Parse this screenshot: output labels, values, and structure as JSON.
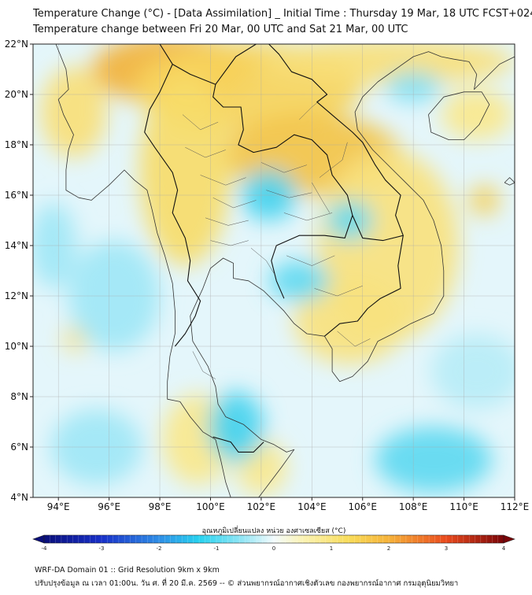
{
  "header": {
    "title_line1": "Temperature Change (°C) - [Data Assimilation] _ Initial Time : Thursday 19 Mar, 18 UTC FCST+024",
    "title_line2": "Temperature change between Fri 20 Mar, 00 UTC and Sat 21 Mar, 00 UTC"
  },
  "map": {
    "lat_range": [
      4,
      22
    ],
    "lon_range": [
      93,
      112
    ],
    "lat_ticks": [
      {
        "value": 22,
        "label": "22°N"
      },
      {
        "value": 20,
        "label": "20°N"
      },
      {
        "value": 18,
        "label": "18°N"
      },
      {
        "value": 16,
        "label": "16°N"
      },
      {
        "value": 14,
        "label": "14°N"
      },
      {
        "value": 12,
        "label": "12°N"
      },
      {
        "value": 10,
        "label": "10°N"
      },
      {
        "value": 8,
        "label": "8°N"
      },
      {
        "value": 6,
        "label": "6°N"
      },
      {
        "value": 4,
        "label": "4°N"
      }
    ],
    "lon_ticks": [
      {
        "value": 94,
        "label": "94°E"
      },
      {
        "value": 96,
        "label": "96°E"
      },
      {
        "value": 98,
        "label": "98°E"
      },
      {
        "value": 100,
        "label": "100°E"
      },
      {
        "value": 102,
        "label": "102°E"
      },
      {
        "value": 104,
        "label": "104°E"
      },
      {
        "value": 106,
        "label": "106°E"
      },
      {
        "value": 108,
        "label": "108°E"
      },
      {
        "value": 110,
        "label": "110°E"
      },
      {
        "value": 112,
        "label": "112°E"
      }
    ],
    "base_color": "#e4f6fb",
    "field_blobs": [
      {
        "lon": 98.5,
        "lat": 21.0,
        "rx": 3.2,
        "ry": 1.4,
        "color": "#f2b23a"
      },
      {
        "lon": 101.5,
        "lat": 20.3,
        "rx": 4.5,
        "ry": 1.8,
        "color": "#f7d45c"
      },
      {
        "lon": 107.0,
        "lat": 21.3,
        "rx": 5.0,
        "ry": 0.9,
        "color": "#f8e07a"
      },
      {
        "lon": 104.0,
        "lat": 17.6,
        "rx": 3.5,
        "ry": 1.6,
        "color": "#f3c448"
      },
      {
        "lon": 99.0,
        "lat": 17.0,
        "rx": 1.8,
        "ry": 3.8,
        "color": "#f7dc6a"
      },
      {
        "lon": 107.0,
        "lat": 14.0,
        "rx": 2.8,
        "ry": 3.8,
        "color": "#f8e27e"
      },
      {
        "lon": 105.5,
        "lat": 11.0,
        "rx": 2.2,
        "ry": 1.7,
        "color": "#f8e27e"
      },
      {
        "lon": 110.8,
        "lat": 15.8,
        "rx": 0.6,
        "ry": 0.6,
        "color": "#f5cf55"
      },
      {
        "lon": 94.6,
        "lat": 19.3,
        "rx": 1.3,
        "ry": 1.8,
        "color": "#f8e07a"
      },
      {
        "lon": 94.7,
        "lat": 10.3,
        "rx": 0.5,
        "ry": 0.5,
        "color": "#f8e07a"
      },
      {
        "lon": 99.5,
        "lat": 6.3,
        "rx": 1.4,
        "ry": 1.8,
        "color": "#fae88c"
      },
      {
        "lon": 102.0,
        "lat": 5.2,
        "rx": 1.0,
        "ry": 1.1,
        "color": "#fae88c"
      },
      {
        "lon": 110.5,
        "lat": 19.2,
        "rx": 1.4,
        "ry": 1.0,
        "color": "#fae88c"
      },
      {
        "lon": 102.3,
        "lat": 16.0,
        "rx": 1.1,
        "ry": 1.0,
        "color": "#44d3ef"
      },
      {
        "lon": 105.5,
        "lat": 15.0,
        "rx": 0.9,
        "ry": 0.8,
        "color": "#5ed9f1"
      },
      {
        "lon": 103.5,
        "lat": 12.6,
        "rx": 1.2,
        "ry": 0.8,
        "color": "#5ed9f1"
      },
      {
        "lon": 101.0,
        "lat": 6.8,
        "rx": 1.1,
        "ry": 1.4,
        "color": "#44d3ef"
      },
      {
        "lon": 108.8,
        "lat": 5.5,
        "rx": 2.3,
        "ry": 1.3,
        "color": "#5ed9f1"
      },
      {
        "lon": 108.0,
        "lat": 20.3,
        "rx": 1.1,
        "ry": 0.6,
        "color": "#7fe0f3"
      },
      {
        "lon": 96.2,
        "lat": 12.0,
        "rx": 1.8,
        "ry": 2.2,
        "color": "#9fe7f6"
      },
      {
        "lon": 95.5,
        "lat": 6.0,
        "rx": 1.8,
        "ry": 1.5,
        "color": "#9fe7f6"
      },
      {
        "lon": 110.5,
        "lat": 9.0,
        "rx": 1.8,
        "ry": 1.5,
        "color": "#b7edf7"
      },
      {
        "lon": 93.8,
        "lat": 14.0,
        "rx": 0.9,
        "ry": 1.7,
        "color": "#9fe7f6"
      }
    ],
    "coastlines": [
      [
        [
          93.9,
          22
        ],
        [
          94.3,
          21.0
        ],
        [
          94.4,
          20.2
        ],
        [
          94.0,
          19.8
        ],
        [
          94.2,
          19.2
        ],
        [
          94.6,
          18.4
        ],
        [
          94.4,
          17.8
        ],
        [
          94.3,
          17.0
        ],
        [
          94.3,
          16.2
        ],
        [
          94.8,
          15.9
        ],
        [
          95.3,
          15.8
        ],
        [
          96.0,
          16.4
        ],
        [
          96.6,
          17.0
        ],
        [
          97.0,
          16.6
        ],
        [
          97.5,
          16.2
        ],
        [
          97.7,
          15.4
        ],
        [
          97.9,
          14.5
        ],
        [
          98.2,
          13.6
        ],
        [
          98.5,
          12.5
        ],
        [
          98.6,
          11.4
        ],
        [
          98.6,
          10.5
        ],
        [
          98.4,
          9.6
        ],
        [
          98.3,
          8.6
        ],
        [
          98.3,
          7.9
        ],
        [
          98.8,
          7.8
        ],
        [
          99.2,
          7.2
        ],
        [
          99.7,
          6.6
        ],
        [
          100.2,
          6.3
        ],
        [
          100.4,
          5.5
        ],
        [
          100.6,
          4.6
        ],
        [
          100.8,
          4.0
        ]
      ],
      [
        [
          101.9,
          4.0
        ],
        [
          102.8,
          5.2
        ],
        [
          103.3,
          5.9
        ],
        [
          103.0,
          5.8
        ],
        [
          102.5,
          6.1
        ],
        [
          102.0,
          6.3
        ],
        [
          101.3,
          6.9
        ],
        [
          100.6,
          7.2
        ],
        [
          100.3,
          7.7
        ],
        [
          100.2,
          8.4
        ],
        [
          99.9,
          9.2
        ],
        [
          99.3,
          10.2
        ],
        [
          99.2,
          11.2
        ],
        [
          99.7,
          12.3
        ],
        [
          100.0,
          13.1
        ],
        [
          100.5,
          13.5
        ],
        [
          100.9,
          13.3
        ],
        [
          100.9,
          12.7
        ],
        [
          101.5,
          12.6
        ],
        [
          102.1,
          12.2
        ],
        [
          102.5,
          11.8
        ],
        [
          102.9,
          11.4
        ],
        [
          103.3,
          10.9
        ],
        [
          103.8,
          10.5
        ],
        [
          104.5,
          10.4
        ],
        [
          104.8,
          9.9
        ],
        [
          104.8,
          9.0
        ],
        [
          105.1,
          8.6
        ],
        [
          105.6,
          8.8
        ],
        [
          106.2,
          9.4
        ],
        [
          106.6,
          10.2
        ],
        [
          107.2,
          10.5
        ],
        [
          107.9,
          10.9
        ],
        [
          108.8,
          11.3
        ],
        [
          109.2,
          12.0
        ],
        [
          109.2,
          13.0
        ],
        [
          109.1,
          14.0
        ],
        [
          108.8,
          15.0
        ],
        [
          108.4,
          15.8
        ],
        [
          107.6,
          16.6
        ],
        [
          106.9,
          17.3
        ],
        [
          106.4,
          17.8
        ],
        [
          105.8,
          18.6
        ],
        [
          105.7,
          19.3
        ],
        [
          106.0,
          19.9
        ],
        [
          106.6,
          20.5
        ],
        [
          107.3,
          21.0
        ],
        [
          108.0,
          21.5
        ],
        [
          108.6,
          21.7
        ],
        [
          109.1,
          21.5
        ],
        [
          109.6,
          21.4
        ],
        [
          110.2,
          21.3
        ],
        [
          110.5,
          20.8
        ],
        [
          110.4,
          20.2
        ],
        [
          110.8,
          20.6
        ],
        [
          111.4,
          21.2
        ],
        [
          112.0,
          21.5
        ]
      ],
      [
        [
          108.6,
          19.2
        ],
        [
          108.7,
          18.5
        ],
        [
          109.4,
          18.2
        ],
        [
          110.0,
          18.2
        ],
        [
          110.6,
          18.8
        ],
        [
          111.0,
          19.6
        ],
        [
          110.7,
          20.1
        ],
        [
          110.0,
          20.1
        ],
        [
          109.2,
          19.9
        ],
        [
          108.6,
          19.2
        ]
      ],
      [
        [
          111.6,
          16.5
        ],
        [
          111.8,
          16.4
        ],
        [
          112.0,
          16.5
        ],
        [
          111.8,
          16.7
        ],
        [
          111.6,
          16.5
        ]
      ]
    ],
    "borders": [
      [
        [
          98.0,
          22
        ],
        [
          98.5,
          21.2
        ],
        [
          99.2,
          20.8
        ],
        [
          100.2,
          20.4
        ],
        [
          100.1,
          19.9
        ],
        [
          100.5,
          19.5
        ],
        [
          101.2,
          19.5
        ],
        [
          101.3,
          18.6
        ],
        [
          101.1,
          18.0
        ],
        [
          101.7,
          17.7
        ],
        [
          102.6,
          17.9
        ],
        [
          103.3,
          18.4
        ],
        [
          104.0,
          18.2
        ],
        [
          104.6,
          17.6
        ],
        [
          104.8,
          16.8
        ],
        [
          105.4,
          16.0
        ],
        [
          105.6,
          15.2
        ],
        [
          105.3,
          14.3
        ],
        [
          104.5,
          14.4
        ],
        [
          103.5,
          14.4
        ],
        [
          102.6,
          14.0
        ],
        [
          102.4,
          13.4
        ],
        [
          102.6,
          12.6
        ],
        [
          102.9,
          11.9
        ]
      ],
      [
        [
          98.5,
          21.2
        ],
        [
          98.0,
          20.1
        ],
        [
          97.6,
          19.4
        ],
        [
          97.4,
          18.5
        ],
        [
          97.8,
          17.9
        ],
        [
          98.5,
          16.9
        ],
        [
          98.7,
          16.2
        ],
        [
          98.5,
          15.3
        ],
        [
          99.0,
          14.3
        ],
        [
          99.2,
          13.4
        ],
        [
          99.1,
          12.6
        ],
        [
          99.6,
          11.8
        ],
        [
          99.4,
          11.2
        ],
        [
          99.0,
          10.5
        ],
        [
          98.6,
          10.0
        ]
      ],
      [
        [
          100.2,
          20.4
        ],
        [
          101.0,
          21.5
        ],
        [
          101.8,
          22.0
        ],
        [
          102.3,
          22.0
        ],
        [
          102.7,
          21.6
        ],
        [
          103.2,
          20.9
        ],
        [
          104.0,
          20.6
        ],
        [
          104.6,
          20.0
        ],
        [
          104.2,
          19.7
        ],
        [
          104.9,
          19.1
        ],
        [
          105.6,
          18.5
        ],
        [
          106.0,
          18.1
        ],
        [
          106.5,
          17.2
        ],
        [
          106.9,
          16.6
        ],
        [
          107.5,
          16.0
        ],
        [
          107.3,
          15.2
        ],
        [
          107.6,
          14.4
        ],
        [
          106.8,
          14.2
        ],
        [
          106.0,
          14.3
        ],
        [
          105.6,
          15.2
        ]
      ],
      [
        [
          107.6,
          14.4
        ],
        [
          107.4,
          13.2
        ],
        [
          107.5,
          12.3
        ],
        [
          106.7,
          11.9
        ],
        [
          106.2,
          11.5
        ],
        [
          105.8,
          11.0
        ],
        [
          105.1,
          10.9
        ],
        [
          104.5,
          10.4
        ]
      ],
      [
        [
          100.1,
          6.4
        ],
        [
          100.8,
          6.2
        ],
        [
          101.1,
          5.8
        ],
        [
          101.7,
          5.8
        ],
        [
          102.1,
          6.2
        ]
      ]
    ],
    "provinces": [
      [
        [
          98.9,
          19.2
        ],
        [
          99.6,
          18.6
        ],
        [
          100.3,
          18.9
        ]
      ],
      [
        [
          99.0,
          17.9
        ],
        [
          99.8,
          17.5
        ],
        [
          100.6,
          17.8
        ]
      ],
      [
        [
          99.6,
          16.8
        ],
        [
          100.6,
          16.4
        ],
        [
          101.4,
          16.7
        ]
      ],
      [
        [
          100.1,
          15.9
        ],
        [
          100.9,
          15.5
        ],
        [
          101.8,
          15.8
        ]
      ],
      [
        [
          99.8,
          15.1
        ],
        [
          100.7,
          14.8
        ],
        [
          101.5,
          15.0
        ]
      ],
      [
        [
          100.0,
          14.2
        ],
        [
          100.8,
          14.0
        ],
        [
          101.5,
          14.2
        ]
      ],
      [
        [
          102.0,
          17.3
        ],
        [
          102.9,
          16.9
        ],
        [
          103.8,
          17.2
        ]
      ],
      [
        [
          102.2,
          16.2
        ],
        [
          103.1,
          15.9
        ],
        [
          104.0,
          16.1
        ]
      ],
      [
        [
          102.9,
          15.3
        ],
        [
          103.8,
          15.0
        ],
        [
          104.8,
          15.3
        ]
      ],
      [
        [
          104.0,
          16.5
        ],
        [
          104.4,
          15.8
        ],
        [
          104.7,
          15.3
        ]
      ],
      [
        [
          101.6,
          13.9
        ],
        [
          102.2,
          13.4
        ],
        [
          102.5,
          12.9
        ]
      ],
      [
        [
          99.3,
          9.8
        ],
        [
          99.7,
          9.0
        ],
        [
          100.2,
          8.7
        ]
      ],
      [
        [
          103.0,
          13.6
        ],
        [
          104.0,
          13.2
        ],
        [
          104.9,
          13.6
        ]
      ],
      [
        [
          104.1,
          12.3
        ],
        [
          105.0,
          12.0
        ],
        [
          106.0,
          12.4
        ]
      ],
      [
        [
          105.0,
          10.6
        ],
        [
          105.7,
          10.0
        ],
        [
          106.3,
          10.3
        ]
      ],
      [
        [
          104.3,
          16.7
        ],
        [
          105.2,
          17.4
        ],
        [
          105.4,
          18.1
        ]
      ],
      [
        [
          103.5,
          19.0
        ],
        [
          104.0,
          19.5
        ],
        [
          104.6,
          20.0
        ]
      ]
    ]
  },
  "colorbar": {
    "label": "อุณหภูมิเปลี่ยนแปลง หน่วย องศาเซลเซียส (°C)",
    "min": -4,
    "max": 4,
    "ticks": [
      {
        "value": -4,
        "label": "-4"
      },
      {
        "value": -3,
        "label": "-3"
      },
      {
        "value": -2,
        "label": "-2"
      },
      {
        "value": -1,
        "label": "-1"
      },
      {
        "value": 0,
        "label": "0"
      },
      {
        "value": 1,
        "label": "1"
      },
      {
        "value": 2,
        "label": "2"
      },
      {
        "value": 3,
        "label": "3"
      },
      {
        "value": 4,
        "label": "4"
      }
    ],
    "color_stops": [
      {
        "value": -4,
        "color": "#0a0f7a"
      },
      {
        "value": -3,
        "color": "#1830c8"
      },
      {
        "value": -2,
        "color": "#2f8ee6"
      },
      {
        "value": -1.3,
        "color": "#27d2ef"
      },
      {
        "value": -0.5,
        "color": "#9ae7f5"
      },
      {
        "value": 0,
        "color": "#f3fbfd"
      },
      {
        "value": 0.5,
        "color": "#fbf3b5"
      },
      {
        "value": 1.3,
        "color": "#f8dc5a"
      },
      {
        "value": 2,
        "color": "#f6b33a"
      },
      {
        "value": 3,
        "color": "#e94a1d"
      },
      {
        "value": 4,
        "color": "#7a0508"
      }
    ]
  },
  "footer": {
    "line1": "WRF-DA Domain 01 :: Grid Resolution 9km x 9km",
    "line2": "ปรับปรุงข้อมูล ณ เวลา 01:00น. วัน ศ. ที่ 20 มี.ค. 2569 -- © ส่วนพยากรณ์อากาศเชิงตัวเลข กองพยากรณ์อากาศ กรมอุตุนิยมวิทยา"
  }
}
